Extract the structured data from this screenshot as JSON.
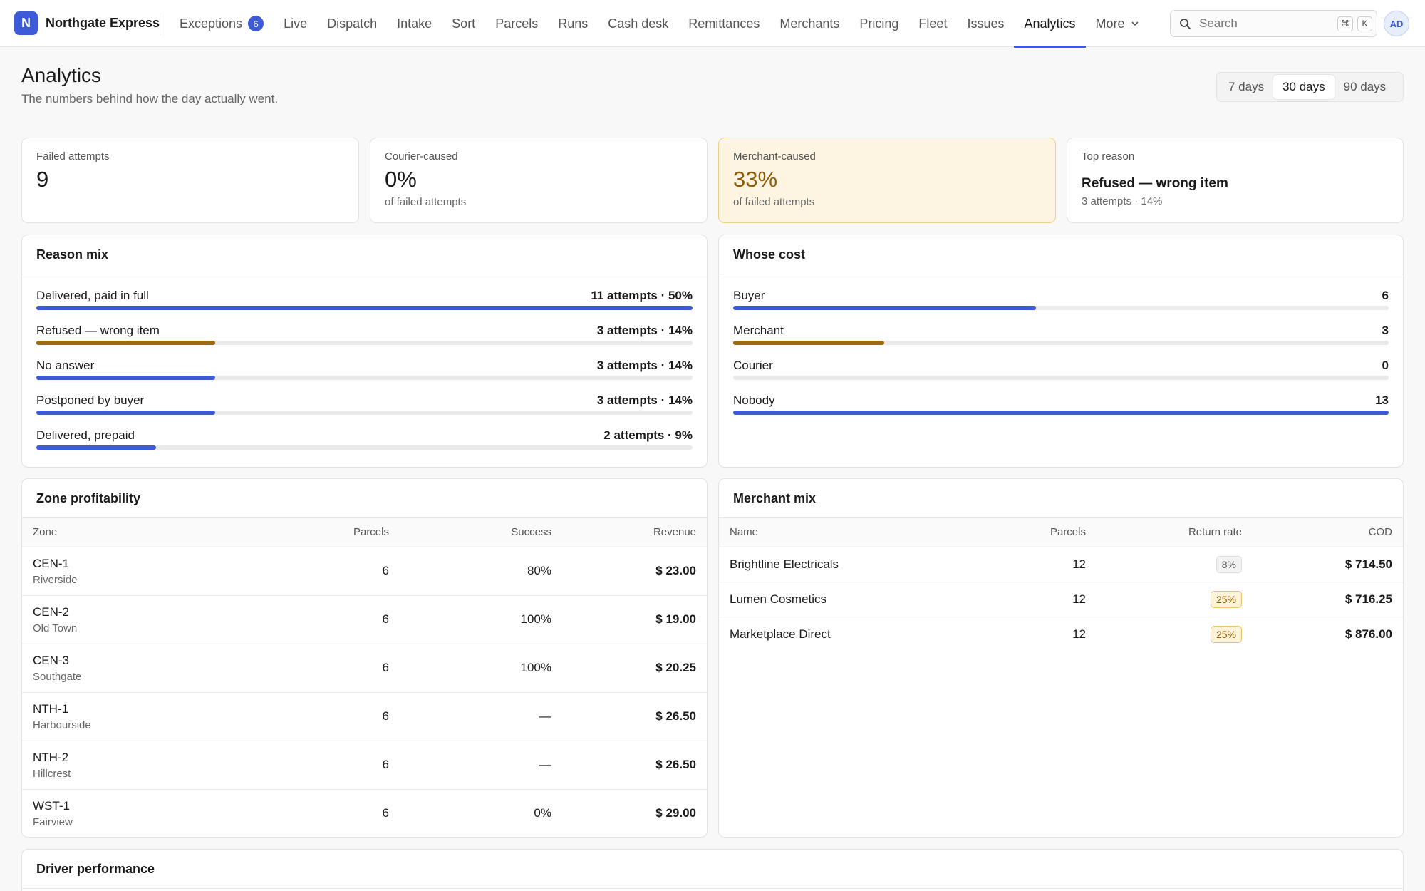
{
  "app": {
    "brand_initial": "N",
    "brand_name": "Northgate Express",
    "accent": "#3d5bd6",
    "warn": "#9c6a10"
  },
  "nav": {
    "items": [
      {
        "label": "Exceptions",
        "badge": "6"
      },
      {
        "label": "Live"
      },
      {
        "label": "Dispatch"
      },
      {
        "label": "Intake"
      },
      {
        "label": "Sort"
      },
      {
        "label": "Parcels"
      },
      {
        "label": "Runs"
      },
      {
        "label": "Cash desk"
      },
      {
        "label": "Remittances"
      },
      {
        "label": "Merchants"
      },
      {
        "label": "Pricing"
      },
      {
        "label": "Fleet"
      },
      {
        "label": "Issues"
      },
      {
        "label": "Analytics",
        "active": true
      }
    ],
    "more_label": "More"
  },
  "search": {
    "placeholder": "Search",
    "kbd_cmd": "⌘",
    "kbd_key": "K"
  },
  "user": {
    "initials": "AD"
  },
  "page": {
    "title": "Analytics",
    "subtitle": "The numbers behind how the day actually went."
  },
  "range": {
    "options": [
      "7 days",
      "30 days",
      "90 days"
    ],
    "selected": "30 days"
  },
  "kpis": {
    "failed": {
      "label": "Failed attempts",
      "value": "9"
    },
    "courier": {
      "label": "Courier-caused",
      "value": "0%",
      "sub": "of failed attempts"
    },
    "merchant": {
      "label": "Merchant-caused",
      "value": "33%",
      "sub": "of failed attempts"
    },
    "top": {
      "label": "Top reason",
      "value": "Refused — wrong item",
      "sub": "3 attempts · 14%"
    }
  },
  "reason_mix": {
    "title": "Reason mix",
    "rows": [
      {
        "label": "Delivered, paid in full",
        "value": "11 attempts · 50%",
        "fraction": 1.0,
        "color": "#3d5bd6"
      },
      {
        "label": "Refused — wrong item",
        "value": "3 attempts · 14%",
        "fraction": 0.273,
        "color": "#9c6a10"
      },
      {
        "label": "No answer",
        "value": "3 attempts · 14%",
        "fraction": 0.273,
        "color": "#3d5bd6"
      },
      {
        "label": "Postponed by buyer",
        "value": "3 attempts · 14%",
        "fraction": 0.273,
        "color": "#3d5bd6"
      },
      {
        "label": "Delivered, prepaid",
        "value": "2 attempts · 9%",
        "fraction": 0.182,
        "color": "#3d5bd6"
      }
    ]
  },
  "whose_cost": {
    "title": "Whose cost",
    "rows": [
      {
        "label": "Buyer",
        "value": "6",
        "fraction": 0.4615,
        "color": "#3d5bd6"
      },
      {
        "label": "Merchant",
        "value": "3",
        "fraction": 0.2308,
        "color": "#9c6a10"
      },
      {
        "label": "Courier",
        "value": "0",
        "fraction": 0,
        "color": "#3d5bd6"
      },
      {
        "label": "Nobody",
        "value": "13",
        "fraction": 1.0,
        "color": "#3d5bd6"
      }
    ]
  },
  "zone_profitability": {
    "title": "Zone profitability",
    "headers": {
      "zone": "Zone",
      "parcels": "Parcels",
      "success": "Success",
      "revenue": "Revenue"
    },
    "rows": [
      {
        "code": "CEN-1",
        "name": "Riverside",
        "parcels": "6",
        "success": "80%",
        "revenue": "$ 23.00"
      },
      {
        "code": "CEN-2",
        "name": "Old Town",
        "parcels": "6",
        "success": "100%",
        "revenue": "$ 19.00"
      },
      {
        "code": "CEN-3",
        "name": "Southgate",
        "parcels": "6",
        "success": "100%",
        "revenue": "$ 20.25"
      },
      {
        "code": "NTH-1",
        "name": "Harbourside",
        "parcels": "6",
        "success": "—",
        "revenue": "$ 26.50"
      },
      {
        "code": "NTH-2",
        "name": "Hillcrest",
        "parcels": "6",
        "success": "—",
        "revenue": "$ 26.50"
      },
      {
        "code": "WST-1",
        "name": "Fairview",
        "parcels": "6",
        "success": "0%",
        "revenue": "$ 29.00"
      }
    ]
  },
  "merchant_mix": {
    "title": "Merchant mix",
    "headers": {
      "name": "Name",
      "parcels": "Parcels",
      "return_rate": "Return rate",
      "cod": "COD"
    },
    "rows": [
      {
        "name": "Brightline Electricals",
        "parcels": "12",
        "return_rate": "8%",
        "warn": false,
        "cod": "$ 714.50"
      },
      {
        "name": "Lumen Cosmetics",
        "parcels": "12",
        "return_rate": "25%",
        "warn": true,
        "cod": "$ 716.25"
      },
      {
        "name": "Marketplace Direct",
        "parcels": "12",
        "return_rate": "25%",
        "warn": true,
        "cod": "$ 876.00"
      }
    ]
  },
  "driver_performance": {
    "title": "Driver performance"
  }
}
